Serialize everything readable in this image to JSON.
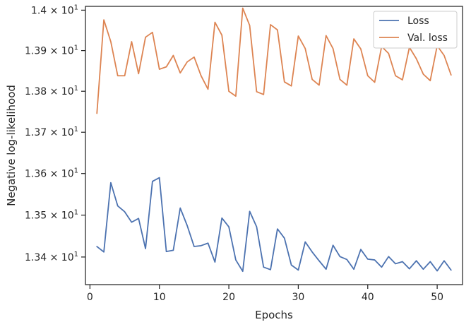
{
  "chart_data": {
    "type": "line",
    "title": "",
    "xlabel": "Epochs",
    "ylabel": "Negative log-likelihood",
    "xlim": [
      -0.65,
      53.65
    ],
    "ylim": [
      13.3345,
      14.0095
    ],
    "yscale": "log",
    "grid": false,
    "legend_position": "top-right",
    "x_ticks": [
      0,
      10,
      20,
      30,
      40,
      50
    ],
    "x_tick_labels": [
      "0",
      "10",
      "20",
      "30",
      "40",
      "50"
    ],
    "y_ticks": [
      {
        "value": 13.4,
        "mant": "1.34",
        "exp": "1"
      },
      {
        "value": 13.5,
        "mant": "1.35",
        "exp": "1"
      },
      {
        "value": 13.6,
        "mant": "1.36",
        "exp": "1"
      },
      {
        "value": 13.7,
        "mant": "1.37",
        "exp": "1"
      },
      {
        "value": 13.8,
        "mant": "1.38",
        "exp": "1"
      },
      {
        "value": 13.9,
        "mant": "1.39",
        "exp": "1"
      },
      {
        "value": 14.0,
        "mant": "1.4",
        "exp": "1"
      }
    ],
    "x": [
      1,
      2,
      3,
      4,
      5,
      6,
      7,
      8,
      9,
      10,
      11,
      12,
      13,
      14,
      15,
      16,
      17,
      18,
      19,
      20,
      21,
      22,
      23,
      24,
      25,
      26,
      27,
      28,
      29,
      30,
      31,
      32,
      33,
      34,
      35,
      36,
      37,
      38,
      39,
      40,
      41,
      42,
      43,
      44,
      45,
      46,
      47,
      48,
      49,
      50,
      51,
      52
    ],
    "series": [
      {
        "name": "Loss",
        "color": "#4c72b0",
        "values": [
          13.425,
          13.412,
          13.578,
          13.522,
          13.508,
          13.483,
          13.492,
          13.42,
          13.581,
          13.59,
          13.413,
          13.416,
          13.517,
          13.475,
          13.425,
          13.427,
          13.433,
          13.388,
          13.493,
          13.472,
          13.393,
          13.366,
          13.509,
          13.472,
          13.376,
          13.37,
          13.467,
          13.445,
          13.381,
          13.369,
          13.436,
          13.412,
          13.391,
          13.371,
          13.428,
          13.401,
          13.394,
          13.371,
          13.418,
          13.395,
          13.393,
          13.376,
          13.401,
          13.384,
          13.389,
          13.372,
          13.391,
          13.371,
          13.389,
          13.367,
          13.391,
          13.369
        ]
      },
      {
        "name": "Val. loss",
        "color": "#dd8452",
        "values": [
          13.746,
          13.976,
          13.922,
          13.838,
          13.838,
          13.922,
          13.843,
          13.933,
          13.945,
          13.854,
          13.86,
          13.888,
          13.845,
          13.872,
          13.884,
          13.838,
          13.805,
          13.97,
          13.938,
          13.8,
          13.788,
          14.005,
          13.962,
          13.799,
          13.792,
          13.964,
          13.951,
          13.823,
          13.813,
          13.936,
          13.905,
          13.829,
          13.815,
          13.937,
          13.905,
          13.829,
          13.815,
          13.929,
          13.904,
          13.838,
          13.822,
          13.91,
          13.893,
          13.838,
          13.828,
          13.908,
          13.88,
          13.842,
          13.826,
          13.912,
          13.888,
          13.84
        ]
      }
    ]
  }
}
